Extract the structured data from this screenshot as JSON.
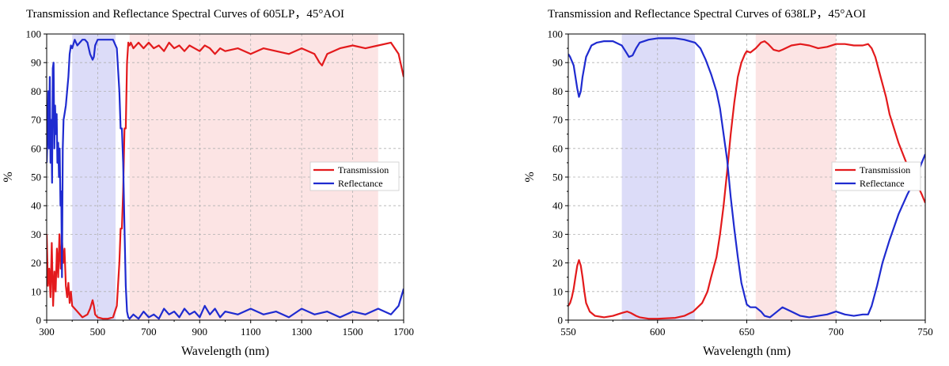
{
  "chart_data": [
    {
      "type": "line",
      "title": "Transmission and Reflectance Spectral Curves of 605LP，45°AOI",
      "xlabel": "Wavelength (nm)",
      "ylabel": "%",
      "xlim": [
        300,
        1700
      ],
      "ylim": [
        0,
        100
      ],
      "xticks": [
        300,
        500,
        700,
        900,
        1100,
        1300,
        1500,
        1700
      ],
      "yticks": [
        0,
        10,
        20,
        30,
        40,
        50,
        60,
        70,
        80,
        90,
        100
      ],
      "grid": true,
      "legend_position": "right",
      "shaded_regions": [
        {
          "x": [
            400,
            570
          ],
          "color": "#dcdcf8"
        },
        {
          "x": [
            625,
            1600
          ],
          "color": "#fce4e4"
        }
      ],
      "series": [
        {
          "name": "Transmission",
          "color": "#e31a1c",
          "x": [
            300,
            305,
            310,
            315,
            320,
            325,
            330,
            335,
            340,
            345,
            350,
            355,
            360,
            365,
            370,
            375,
            380,
            385,
            390,
            395,
            400,
            420,
            440,
            460,
            470,
            480,
            485,
            490,
            500,
            520,
            540,
            560,
            575,
            585,
            590,
            595,
            600,
            605,
            610,
            615,
            620,
            625,
            630,
            640,
            660,
            680,
            700,
            720,
            740,
            760,
            780,
            800,
            820,
            840,
            860,
            880,
            900,
            920,
            940,
            960,
            980,
            1000,
            1050,
            1100,
            1150,
            1200,
            1250,
            1300,
            1350,
            1370,
            1380,
            1390,
            1400,
            1450,
            1500,
            1550,
            1600,
            1650,
            1680,
            1700
          ],
          "y": [
            30,
            12,
            18,
            8,
            27,
            5,
            17,
            10,
            25,
            15,
            30,
            18,
            28,
            20,
            25,
            12,
            8,
            13,
            6,
            10,
            5,
            3,
            1,
            2,
            4,
            7,
            5,
            2,
            1,
            0.5,
            0.5,
            1,
            5,
            20,
            32,
            32,
            45,
            67,
            67,
            90,
            97,
            96,
            97,
            95,
            97,
            95,
            97,
            95,
            96,
            94,
            97,
            95,
            96,
            94,
            96,
            95,
            94,
            96,
            95,
            93,
            95,
            94,
            95,
            93,
            95,
            94,
            93,
            95,
            93,
            90,
            89,
            91,
            93,
            95,
            96,
            95,
            96,
            97,
            93,
            85
          ]
        },
        {
          "name": "Reflectance",
          "color": "#1f2bd0",
          "x": [
            300,
            303,
            306,
            309,
            312,
            315,
            318,
            321,
            324,
            327,
            330,
            333,
            336,
            339,
            342,
            345,
            348,
            351,
            354,
            357,
            360,
            363,
            366,
            370,
            375,
            380,
            385,
            390,
            395,
            400,
            410,
            420,
            440,
            450,
            460,
            470,
            480,
            485,
            490,
            500,
            520,
            540,
            560,
            575,
            585,
            590,
            595,
            600,
            605,
            610,
            615,
            620,
            625,
            630,
            640,
            660,
            680,
            700,
            720,
            740,
            760,
            780,
            800,
            820,
            840,
            860,
            880,
            900,
            920,
            940,
            960,
            980,
            1000,
            1050,
            1100,
            1150,
            1200,
            1250,
            1300,
            1350,
            1400,
            1450,
            1500,
            1550,
            1600,
            1650,
            1680,
            1700
          ],
          "y": [
            55,
            65,
            80,
            60,
            85,
            55,
            70,
            48,
            88,
            90,
            60,
            75,
            65,
            72,
            55,
            62,
            50,
            60,
            40,
            45,
            15,
            60,
            70,
            72,
            75,
            80,
            85,
            93,
            96,
            95,
            98,
            96,
            98,
            98,
            97,
            93,
            91,
            92,
            96,
            98,
            98,
            98,
            98,
            95,
            80,
            67,
            67,
            55,
            32,
            12,
            3,
            1,
            0.5,
            1,
            2,
            0.5,
            3,
            1,
            2,
            0.5,
            4,
            2,
            3,
            1,
            4,
            2,
            3,
            1,
            5,
            2,
            4,
            1,
            3,
            2,
            4,
            2,
            3,
            1,
            4,
            2,
            3,
            1,
            3,
            2,
            4,
            2,
            5,
            11
          ]
        }
      ]
    },
    {
      "type": "line",
      "title": "Transmission and Reflectance Spectral Curves of 638LP，45°AOI",
      "xlabel": "Wavelength (nm)",
      "ylabel": "%",
      "xlim": [
        550,
        750
      ],
      "ylim": [
        0,
        100
      ],
      "xticks": [
        550,
        600,
        650,
        700,
        750
      ],
      "yticks": [
        0,
        10,
        20,
        30,
        40,
        50,
        60,
        70,
        80,
        90,
        100
      ],
      "grid": true,
      "legend_position": "right",
      "shaded_regions": [
        {
          "x": [
            580,
            621
          ],
          "color": "#dcdcf8"
        },
        {
          "x": [
            655,
            700
          ],
          "color": "#fce4e4"
        }
      ],
      "series": [
        {
          "name": "Transmission",
          "color": "#e31a1c",
          "x": [
            550,
            551,
            552,
            553,
            554,
            555,
            556,
            557,
            558,
            559,
            560,
            562,
            565,
            570,
            575,
            580,
            583,
            585,
            588,
            590,
            595,
            600,
            610,
            615,
            620,
            625,
            628,
            630,
            633,
            635,
            637,
            639,
            641,
            643,
            645,
            647,
            649,
            650,
            652,
            655,
            658,
            660,
            662,
            665,
            668,
            670,
            675,
            680,
            685,
            690,
            695,
            700,
            705,
            710,
            715,
            718,
            720,
            722,
            725,
            728,
            730,
            735,
            740,
            745,
            748,
            750
          ],
          "y": [
            5,
            6,
            8,
            11,
            15,
            19,
            21,
            19,
            15,
            10,
            6,
            3,
            1.5,
            1,
            1.5,
            2.5,
            3,
            2.5,
            1.5,
            1,
            0.5,
            0.5,
            0.8,
            1.5,
            3,
            6,
            10,
            15,
            22,
            30,
            40,
            52,
            65,
            76,
            85,
            90,
            93,
            94,
            93.5,
            95,
            97,
            97.5,
            96.5,
            94.5,
            94,
            94.5,
            96,
            96.5,
            96,
            95,
            95.5,
            96.5,
            96.5,
            96,
            96,
            96.5,
            95,
            92,
            85,
            78,
            72,
            62,
            54,
            48,
            44,
            41
          ]
        },
        {
          "name": "Reflectance",
          "color": "#1f2bd0",
          "x": [
            550,
            551,
            553,
            555,
            556,
            557,
            558,
            560,
            563,
            566,
            570,
            575,
            580,
            582,
            584,
            586,
            588,
            590,
            595,
            600,
            610,
            615,
            618,
            621,
            624,
            627,
            630,
            633,
            635,
            637,
            639,
            641,
            643,
            645,
            647,
            649,
            650,
            652,
            655,
            658,
            660,
            663,
            665,
            668,
            670,
            675,
            680,
            685,
            690,
            695,
            700,
            705,
            710,
            715,
            718,
            720,
            723,
            726,
            730,
            735,
            740,
            745,
            748,
            750
          ],
          "y": [
            93,
            92,
            89,
            81,
            78,
            80,
            85,
            92,
            96,
            97,
            97.5,
            97.5,
            96,
            94,
            92,
            92.5,
            95,
            97,
            98,
            98.5,
            98.5,
            98,
            97.5,
            97,
            95,
            91,
            86,
            80,
            74,
            65,
            56,
            43,
            32,
            22,
            13,
            8,
            5.5,
            4.5,
            4.5,
            3,
            1.5,
            1,
            2,
            3.5,
            4.5,
            3,
            1.5,
            1,
            1.5,
            2,
            3,
            2,
            1.5,
            2,
            2,
            5,
            12,
            20,
            28,
            37,
            44,
            50,
            55,
            58
          ]
        }
      ]
    }
  ]
}
